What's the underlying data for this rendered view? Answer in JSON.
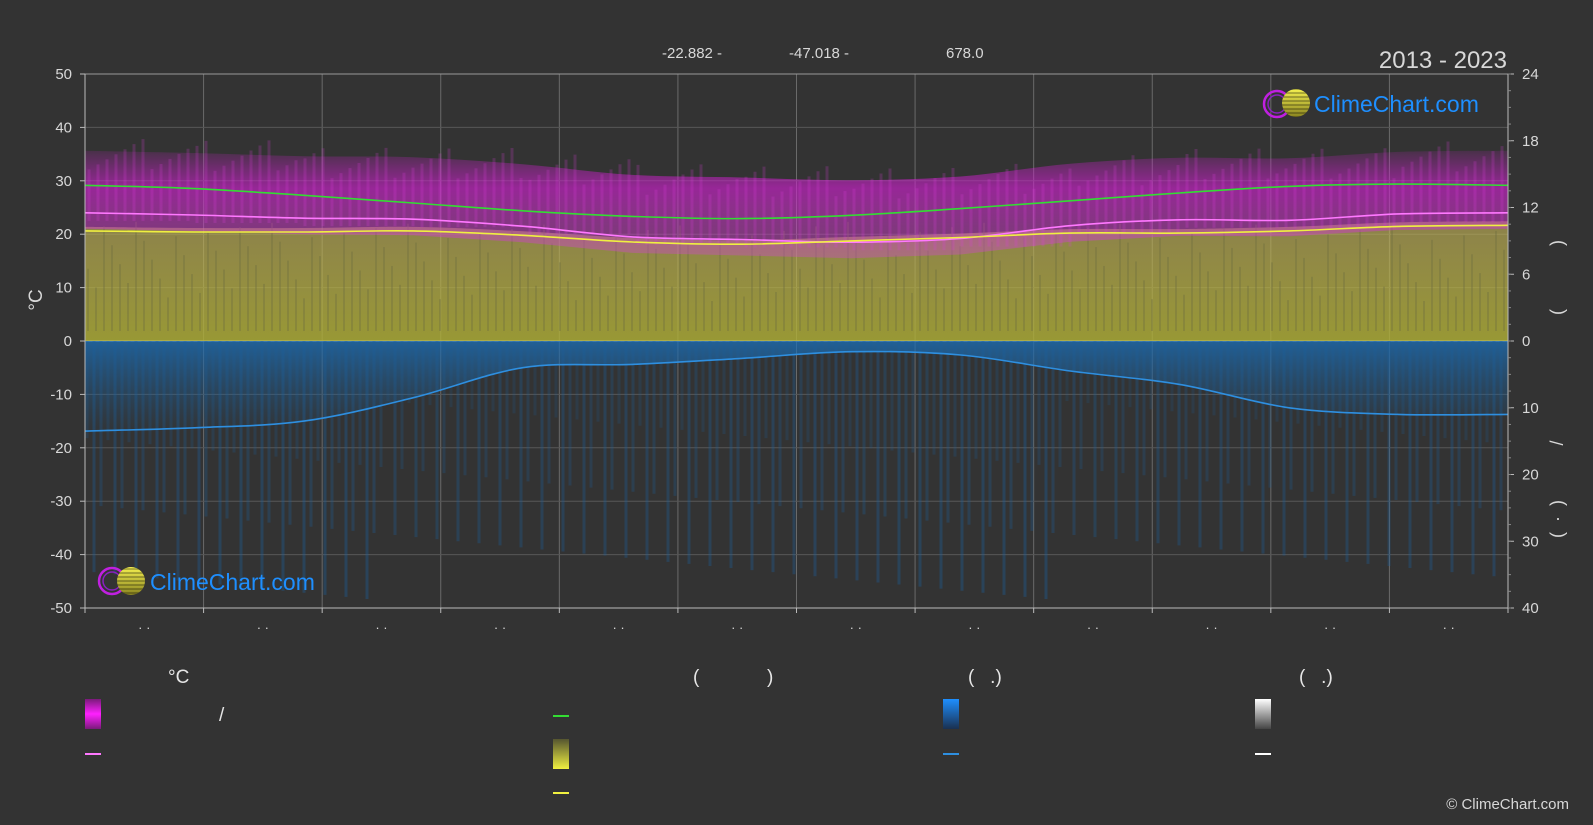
{
  "header": {
    "lat": "-22.882 -",
    "lon": "-47.018 -",
    "elev": "678.0",
    "years": "2013 - 2023"
  },
  "watermark": {
    "text": "ClimeChart.com"
  },
  "axes": {
    "left_label": "°C",
    "right_top_label_a": "(",
    "right_top_label_b": ")",
    "right_bottom_label_a": "(",
    "right_bottom_label_dot": "·",
    "right_bottom_label_b": ")",
    "right_slash": "/",
    "month_tick_labels": [
      "· ·",
      "· ·",
      "· ·",
      "· ·",
      "· ·",
      "· ·",
      "· ·",
      "· ·",
      "· ·",
      "· ·",
      "· ·",
      "· ·"
    ]
  },
  "legend": {
    "col1_title": "°C",
    "col1_slash": "/",
    "col2_title_a": "(",
    "col2_title_b": ")",
    "col3_title": "(   .)",
    "col4_title": "(   .)"
  },
  "colors": {
    "background": "#333333",
    "grid": "#5a5a5a",
    "temp_range": "#e020e0",
    "temp_mean": "#ff78ff",
    "daylight": "#33dd33",
    "sunshine_area": "#b8b83a",
    "sunshine_line": "#f0f040",
    "precip_area": "#1a6ab0",
    "precip_line": "#2e8fe0",
    "snow": "#ffffff",
    "accent_blue": "#1e8fff"
  },
  "copyright": "© ClimeChart.com",
  "chart_data": {
    "type": "area",
    "title": "2013 - 2023",
    "x_ticks": 12,
    "left_axis": {
      "label": "°C",
      "ylim": [
        -50,
        50
      ],
      "ticks": [
        50,
        40,
        30,
        20,
        10,
        0,
        -10,
        -20,
        -30,
        -40,
        -50
      ]
    },
    "right_axis_top": {
      "ylim": [
        0,
        24
      ],
      "ticks": [
        24,
        18,
        12,
        6,
        0
      ]
    },
    "right_axis_bottom": {
      "ylim": [
        0,
        40
      ],
      "ticks": [
        0,
        10,
        20,
        30,
        40
      ]
    },
    "series": [
      {
        "name": "daylight",
        "axis": "right_top",
        "values": [
          14.0,
          13.7,
          13.1,
          12.4,
          11.7,
          11.2,
          11.0,
          11.3,
          11.9,
          12.6,
          13.3,
          13.9,
          14.1,
          14.0
        ]
      },
      {
        "name": "mean_temp",
        "axis": "left",
        "values": [
          24.0,
          23.6,
          23.0,
          22.8,
          21.5,
          19.5,
          19.0,
          18.5,
          19.2,
          21.6,
          22.7,
          22.6,
          23.8,
          24.0
        ]
      },
      {
        "name": "sunshine_hours",
        "axis": "right_top",
        "values": [
          9.9,
          9.8,
          9.8,
          9.9,
          9.5,
          8.9,
          8.7,
          9.0,
          9.3,
          9.7,
          9.7,
          9.9,
          10.3,
          10.4
        ]
      },
      {
        "name": "precipitation",
        "axis": "right_bottom",
        "values": [
          13.5,
          13.0,
          12.0,
          8.5,
          4.0,
          3.5,
          2.6,
          1.6,
          2.1,
          4.5,
          6.5,
          10.0,
          11.0,
          11.0
        ]
      }
    ]
  }
}
